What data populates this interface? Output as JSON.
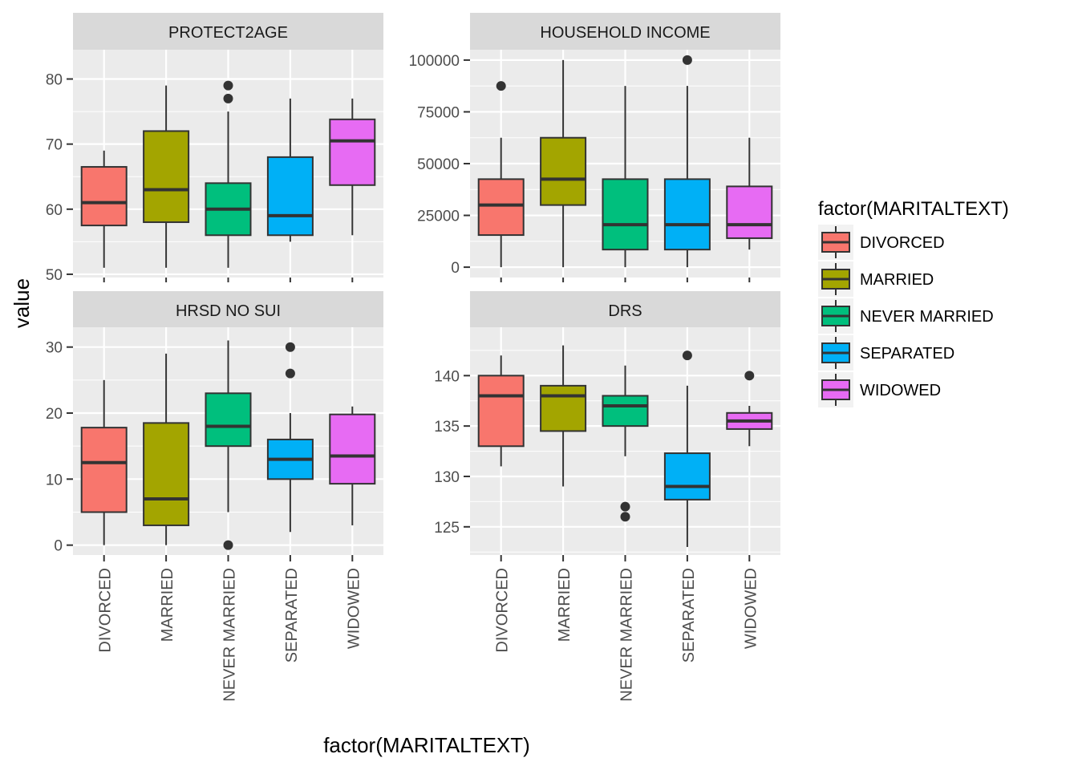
{
  "chart_data": {
    "type": "box",
    "xlabel": "factor(MARITALTEXT)",
    "ylabel": "value",
    "categories": [
      "DIVORCED",
      "MARRIED",
      "NEVER MARRIED",
      "SEPARATED",
      "WIDOWED"
    ],
    "legend": {
      "title": "factor(MARITALTEXT)",
      "placement": "right",
      "entries": [
        {
          "label": "DIVORCED",
          "color": "#F8766D"
        },
        {
          "label": "MARRIED",
          "color": "#A3A500"
        },
        {
          "label": "NEVER MARRIED",
          "color": "#00BF7D"
        },
        {
          "label": "SEPARATED",
          "color": "#00B0F6"
        },
        {
          "label": "WIDOWED",
          "color": "#E76BF3"
        }
      ]
    },
    "facets": [
      {
        "title": "PROTECT2AGE",
        "ylim": [
          49.5,
          84.5
        ],
        "yticks": [
          50,
          60,
          70,
          80
        ],
        "boxes": [
          {
            "category": "DIVORCED",
            "min": 51,
            "q1": 57.5,
            "median": 61,
            "q3": 66.5,
            "max": 69,
            "outliers": []
          },
          {
            "category": "MARRIED",
            "min": 51,
            "q1": 58,
            "median": 63,
            "q3": 72,
            "max": 79,
            "outliers": []
          },
          {
            "category": "NEVER MARRIED",
            "min": 51,
            "q1": 56,
            "median": 60,
            "q3": 64,
            "max": 75,
            "outliers": [
              77,
              79
            ]
          },
          {
            "category": "SEPARATED",
            "min": 55,
            "q1": 56,
            "median": 59,
            "q3": 68,
            "max": 77,
            "outliers": []
          },
          {
            "category": "WIDOWED",
            "min": 56,
            "q1": 63.7,
            "median": 70.5,
            "q3": 73.8,
            "max": 77,
            "outliers": []
          }
        ]
      },
      {
        "title": "HOUSEHOLD INCOME",
        "ylim": [
          -5000,
          105000
        ],
        "yticks": [
          0,
          25000,
          50000,
          75000,
          100000
        ],
        "boxes": [
          {
            "category": "DIVORCED",
            "min": 0,
            "q1": 15500,
            "median": 30000,
            "q3": 42500,
            "max": 62500,
            "outliers": [
              87500
            ]
          },
          {
            "category": "MARRIED",
            "min": 0,
            "q1": 30000,
            "median": 42500,
            "q3": 62500,
            "max": 100000,
            "outliers": []
          },
          {
            "category": "NEVER MARRIED",
            "min": 0,
            "q1": 8500,
            "median": 20500,
            "q3": 42500,
            "max": 87500,
            "outliers": []
          },
          {
            "category": "SEPARATED",
            "min": 0,
            "q1": 8500,
            "median": 20500,
            "q3": 42500,
            "max": 87500,
            "outliers": [
              100000
            ]
          },
          {
            "category": "WIDOWED",
            "min": 8500,
            "q1": 14000,
            "median": 20500,
            "q3": 39000,
            "max": 62500,
            "outliers": []
          }
        ]
      },
      {
        "title": "HRSD NO SUI",
        "ylim": [
          -1.5,
          33
        ],
        "yticks": [
          0,
          10,
          20,
          30
        ],
        "boxes": [
          {
            "category": "DIVORCED",
            "min": 0,
            "q1": 5,
            "median": 12.5,
            "q3": 17.8,
            "max": 25,
            "outliers": []
          },
          {
            "category": "MARRIED",
            "min": 0,
            "q1": 3,
            "median": 7,
            "q3": 18.5,
            "max": 29,
            "outliers": []
          },
          {
            "category": "NEVER MARRIED",
            "min": 5,
            "q1": 15,
            "median": 18,
            "q3": 23,
            "max": 31,
            "outliers": [
              0
            ]
          },
          {
            "category": "SEPARATED",
            "min": 2,
            "q1": 10,
            "median": 13,
            "q3": 16,
            "max": 20,
            "outliers": [
              26,
              30
            ]
          },
          {
            "category": "WIDOWED",
            "min": 3,
            "q1": 9.3,
            "median": 13.5,
            "q3": 19.8,
            "max": 21,
            "outliers": []
          }
        ]
      },
      {
        "title": "DRS",
        "ylim": [
          122.2,
          144.8
        ],
        "yticks": [
          125,
          130,
          135,
          140
        ],
        "boxes": [
          {
            "category": "DIVORCED",
            "min": 131,
            "q1": 133,
            "median": 138,
            "q3": 140,
            "max": 142,
            "outliers": []
          },
          {
            "category": "MARRIED",
            "min": 129,
            "q1": 134.5,
            "median": 138,
            "q3": 139,
            "max": 143,
            "outliers": []
          },
          {
            "category": "NEVER MARRIED",
            "min": 132,
            "q1": 135,
            "median": 137,
            "q3": 138,
            "max": 141,
            "outliers": [
              126,
              127
            ]
          },
          {
            "category": "SEPARATED",
            "min": 123,
            "q1": 127.7,
            "median": 129,
            "q3": 132.3,
            "max": 139,
            "outliers": [
              142
            ]
          },
          {
            "category": "WIDOWED",
            "min": 133,
            "q1": 134.7,
            "median": 135.5,
            "q3": 136.3,
            "max": 137,
            "outliers": [
              140
            ]
          }
        ]
      }
    ]
  }
}
